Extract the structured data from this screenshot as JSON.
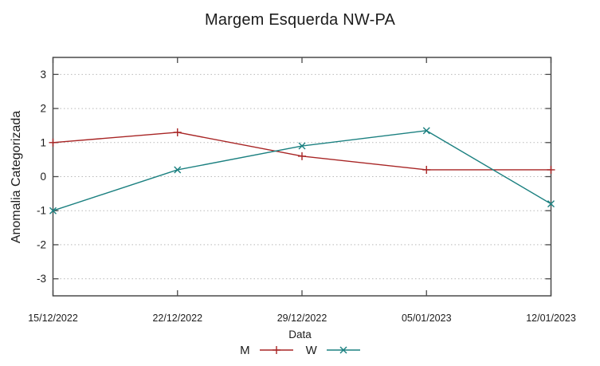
{
  "style": {
    "background": "#ffffff",
    "axis_color": "#4a4a4a",
    "grid_color": "#b9b9b9",
    "text_color": "#1c1c1c"
  },
  "chart_data": {
    "type": "line",
    "title": "Margem Esquerda NW-PA",
    "xlabel": "Data",
    "ylabel": "Anomalia Categorizada",
    "categories": [
      "15/12/2022",
      "22/12/2022",
      "29/12/2022",
      "05/01/2023",
      "12/01/2023"
    ],
    "series": [
      {
        "name": "M",
        "values": [
          1.0,
          1.3,
          0.6,
          0.2,
          0.2
        ],
        "color": "#a82525",
        "marker": "plus"
      },
      {
        "name": "W",
        "values": [
          -1.0,
          0.2,
          0.9,
          1.35,
          -0.8
        ],
        "color": "#1b8080",
        "marker": "cross"
      }
    ],
    "ylim": [
      -3.5,
      3.5
    ],
    "yticks": [
      -3,
      -2,
      -1,
      0,
      1,
      2,
      3
    ],
    "grid": "horizontal-dotted",
    "legend_position": "bottom-center"
  }
}
